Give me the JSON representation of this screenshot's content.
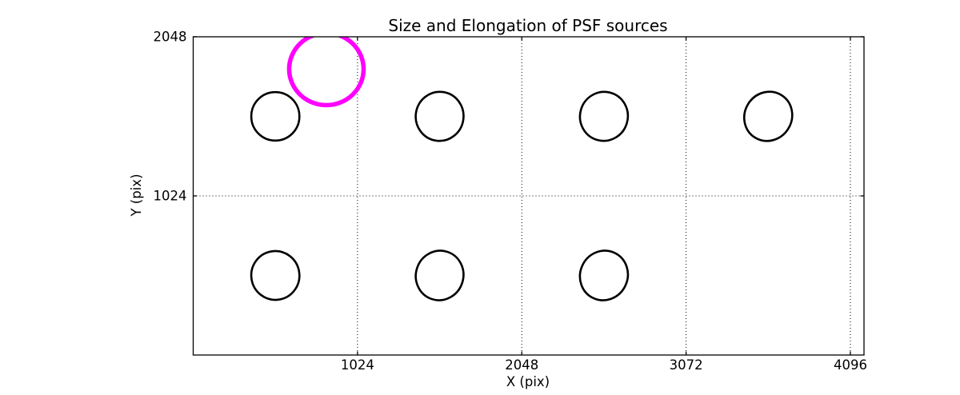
{
  "figure": {
    "background": "#ffffff",
    "axis_color": "#000000"
  },
  "chart_data": {
    "type": "scatter",
    "title": "Size and Elongation of PSF sources",
    "xlabel": "X (pix)",
    "ylabel": "Y (pix)",
    "xlim": [
      0,
      4181
    ],
    "ylim": [
      0,
      2048
    ],
    "xticks": [
      1024,
      2048,
      3072,
      4096
    ],
    "yticks": [
      1024,
      2048
    ],
    "grid": {
      "style": "dotted",
      "x_lines": [
        1024,
        2048,
        3072,
        4096
      ],
      "y_lines": [
        1024
      ]
    },
    "legend": "none",
    "psf_sources": {
      "description": "PSF source ellipses (position in pixels, semi-axes in pixels, angle in degrees)",
      "color": "#000000",
      "stroke_px": 2.6,
      "points": [
        {
          "x": 512,
          "y": 1536,
          "a": 150,
          "b": 156,
          "angle": 0
        },
        {
          "x": 1536,
          "y": 1536,
          "a": 149,
          "b": 158,
          "angle": 8
        },
        {
          "x": 2560,
          "y": 1536,
          "a": 149,
          "b": 158,
          "angle": 15
        },
        {
          "x": 3584,
          "y": 1536,
          "a": 147,
          "b": 161,
          "angle": 32
        },
        {
          "x": 512,
          "y": 512,
          "a": 150,
          "b": 157,
          "angle": -8
        },
        {
          "x": 1536,
          "y": 512,
          "a": 148,
          "b": 160,
          "angle": 18
        },
        {
          "x": 2560,
          "y": 512,
          "a": 148,
          "b": 161,
          "angle": 25
        }
      ]
    },
    "reference_circle": {
      "x": 830,
      "y": 1840,
      "r": 232,
      "color": "#FF00FF",
      "stroke_px": 5.5
    }
  }
}
